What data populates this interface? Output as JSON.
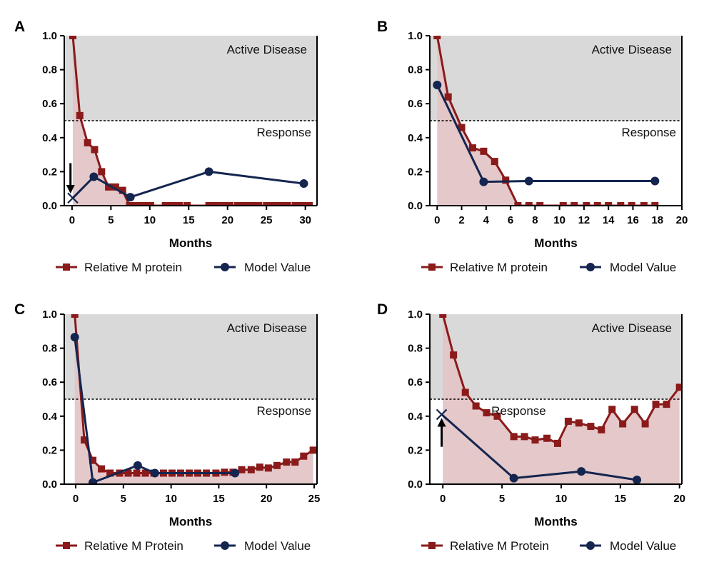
{
  "colors": {
    "m_protein": "#8b1a1a",
    "model": "#14254f",
    "fill_m_protein": "#e3c5c7",
    "active_region": "#d9d9d9",
    "axis": "#000000"
  },
  "chart_data": [
    {
      "type": "line",
      "panel": "A",
      "xlabel": "Months",
      "ylabel": "",
      "xlim": [
        -1,
        31.5
      ],
      "ylim": [
        0,
        1.0
      ],
      "xticks": [
        0,
        5,
        10,
        15,
        20,
        25,
        30
      ],
      "yticks": [
        "0.0",
        "0.2",
        "0.4",
        "0.6",
        "0.8",
        "1.0"
      ],
      "threshold": 0.5,
      "region_labels": {
        "upper": "Active Disease",
        "lower": "Response"
      },
      "legend": [
        "Relative M protein",
        "Model Value"
      ],
      "arrow": {
        "x": -0.2,
        "y_start": 0.25,
        "y_end": 0.08,
        "direction": "down"
      },
      "series": [
        {
          "name": "Relative M protein",
          "marker": "square",
          "x": [
            0.1,
            1.0,
            2.0,
            2.9,
            3.8,
            4.7,
            5.6,
            6.5,
            7.4,
            8.3,
            9.2,
            10.1,
            12.0,
            12.9,
            13.8,
            14.8,
            17.6,
            18.5,
            19.4,
            20.3,
            21.3,
            22.2,
            23.1,
            24.0,
            25.0,
            25.9,
            26.8,
            27.7,
            28.7,
            29.6,
            30.5
          ],
          "y": [
            1.0,
            0.53,
            0.37,
            0.33,
            0.2,
            0.11,
            0.11,
            0.09,
            0.0,
            0.0,
            0.0,
            0.0,
            0.0,
            0.0,
            0.0,
            0.0,
            0.0,
            0.0,
            0.0,
            0.0,
            0.0,
            0.0,
            0.0,
            0.0,
            0.0,
            0.0,
            0.0,
            0.0,
            0.0,
            0.0,
            0.0
          ]
        },
        {
          "name": "Model Value",
          "marker": "circle",
          "x": [
            2.8,
            7.5,
            17.6,
            29.8
          ],
          "y": [
            0.17,
            0.05,
            0.2,
            0.13
          ]
        }
      ],
      "start_point": {
        "x": 0.1,
        "y": 0.045,
        "marker": "x"
      }
    },
    {
      "type": "line",
      "panel": "B",
      "xlabel": "Months",
      "ylabel": "",
      "xlim": [
        -0.6,
        20
      ],
      "ylim": [
        0,
        1.0
      ],
      "xticks": [
        0,
        2,
        4,
        6,
        8,
        10,
        12,
        14,
        16,
        18,
        20
      ],
      "yticks": [
        "0.0",
        "0.2",
        "0.4",
        "0.6",
        "0.8",
        "1.0"
      ],
      "threshold": 0.5,
      "region_labels": {
        "upper": "Active Disease",
        "lower": "Response"
      },
      "legend": [
        "Relative M protein",
        "Model Value"
      ],
      "series": [
        {
          "name": "Relative M protein",
          "marker": "square",
          "x": [
            0.0,
            0.9,
            2.0,
            2.9,
            3.8,
            4.7,
            5.6,
            6.6,
            7.5,
            8.4,
            10.3,
            11.2,
            12.2,
            13.1,
            14.0,
            15.0,
            15.9,
            16.9,
            17.8
          ],
          "y": [
            1.0,
            0.64,
            0.46,
            0.34,
            0.32,
            0.26,
            0.15,
            0.0,
            0.0,
            0.0,
            0.0,
            0.0,
            0.0,
            0.0,
            0.0,
            0.0,
            0.0,
            0.0,
            0.0
          ]
        },
        {
          "name": "Model Value",
          "marker": "circle",
          "x": [
            0.0,
            3.8,
            7.5,
            17.8
          ],
          "y": [
            0.71,
            0.14,
            0.145,
            0.145
          ]
        }
      ]
    },
    {
      "type": "line",
      "panel": "C",
      "xlabel": "Months",
      "ylabel": "",
      "xlim": [
        -1.2,
        25.3
      ],
      "ylim": [
        0,
        1.0
      ],
      "xticks": [
        0,
        5,
        10,
        15,
        20,
        25
      ],
      "yticks": [
        "0.0",
        "0.2",
        "0.4",
        "0.6",
        "0.8",
        "1.0"
      ],
      "threshold": 0.5,
      "region_labels": {
        "upper": "Active Disease",
        "lower": "Response"
      },
      "legend": [
        "Relative M Protein",
        "Model Value"
      ],
      "series": [
        {
          "name": "Relative M Protein",
          "marker": "square",
          "x": [
            -0.1,
            0.9,
            1.8,
            2.7,
            3.6,
            4.6,
            5.5,
            6.4,
            7.3,
            8.2,
            9.2,
            10.1,
            11.0,
            11.9,
            12.8,
            13.7,
            14.7,
            15.6,
            16.5,
            17.4,
            18.4,
            19.3,
            20.2,
            21.1,
            22.1,
            23.0,
            23.9,
            24.9
          ],
          "y": [
            1.0,
            0.26,
            0.14,
            0.09,
            0.065,
            0.065,
            0.065,
            0.065,
            0.065,
            0.065,
            0.065,
            0.065,
            0.065,
            0.065,
            0.065,
            0.065,
            0.065,
            0.07,
            0.07,
            0.085,
            0.085,
            0.1,
            0.095,
            0.11,
            0.13,
            0.13,
            0.165,
            0.2
          ]
        },
        {
          "name": "Model Value",
          "marker": "circle",
          "x": [
            -0.1,
            1.8,
            6.5,
            8.3,
            16.7
          ],
          "y": [
            0.865,
            0.01,
            0.11,
            0.065,
            0.065
          ]
        }
      ]
    },
    {
      "type": "line",
      "panel": "D",
      "xlabel": "Months",
      "ylabel": "",
      "xlim": [
        -1.1,
        20.2
      ],
      "ylim": [
        0,
        1.0
      ],
      "xticks": [
        0,
        5,
        10,
        15,
        20
      ],
      "yticks": [
        "0.0",
        "0.2",
        "0.4",
        "0.6",
        "0.8",
        "1.0"
      ],
      "threshold": 0.5,
      "region_labels": {
        "upper": "Active Disease",
        "lower": "Response"
      },
      "legend": [
        "Relative M Protein",
        "Model Value"
      ],
      "arrow": {
        "x": -0.1,
        "y_start": 0.22,
        "y_end": 0.38,
        "direction": "up"
      },
      "series": [
        {
          "name": "Relative M Protein",
          "marker": "square",
          "x": [
            0.0,
            0.9,
            1.9,
            2.8,
            3.7,
            4.6,
            6.0,
            6.9,
            7.8,
            8.8,
            9.7,
            10.6,
            11.5,
            12.5,
            13.4,
            14.3,
            15.2,
            16.2,
            17.1,
            18.0,
            18.9,
            20.0
          ],
          "y": [
            1.0,
            0.76,
            0.54,
            0.46,
            0.42,
            0.4,
            0.28,
            0.28,
            0.26,
            0.27,
            0.24,
            0.37,
            0.36,
            0.34,
            0.32,
            0.44,
            0.355,
            0.44,
            0.355,
            0.47,
            0.47,
            0.57
          ]
        },
        {
          "name": "Model Value",
          "marker": "circle",
          "x": [
            6.0,
            11.7,
            16.4
          ],
          "y": [
            0.035,
            0.075,
            0.025
          ]
        }
      ],
      "start_point": {
        "x": -0.1,
        "y": 0.41,
        "marker": "x"
      }
    }
  ]
}
